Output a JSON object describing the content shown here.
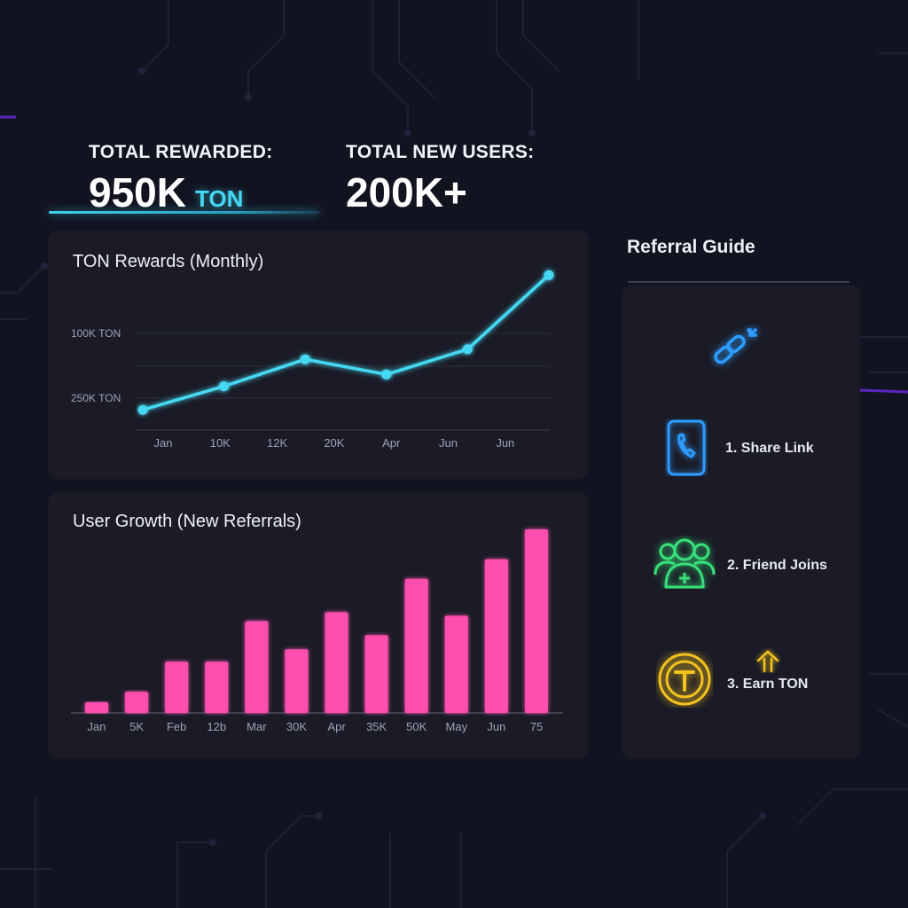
{
  "stats": {
    "rewarded_label": "TOTAL REWARDED:",
    "rewarded_value": "950K",
    "rewarded_unit": "TON",
    "users_label": "TOTAL NEW USERS:",
    "users_value": "200K+"
  },
  "colors": {
    "background": "#121320",
    "panel": "#1a1b26",
    "line": "#45d8f2",
    "bar": "#ff4fae",
    "step1": "#2e9cff",
    "step2": "#37e07a",
    "step3": "#f4c21f"
  },
  "chart_data": [
    {
      "type": "line",
      "title": "TON Rewards (Monthly)",
      "x_tick_labels": [
        "Jan",
        "10K",
        "12K",
        "20K",
        "Apr",
        "Jun",
        "Jun"
      ],
      "y_tick_labels": [
        "100K TON",
        "250K TON"
      ],
      "series": [
        {
          "values": [
            0.12,
            0.26,
            0.42,
            0.33,
            0.48,
            0.92
          ]
        }
      ],
      "ylim": [
        0,
        1
      ],
      "grid": true
    },
    {
      "type": "bar",
      "title": "User Growth (New Referrals)",
      "x_tick_labels": [
        "Jan",
        "5K",
        "Feb",
        "12b",
        "Mar",
        "30K",
        "Apr",
        "35K",
        "50K",
        "May",
        "Jun",
        "75"
      ],
      "values": [
        6,
        12,
        29,
        29,
        52,
        36,
        57,
        44,
        76,
        55,
        87,
        104
      ],
      "ylim": [
        0,
        110
      ],
      "grid": false
    }
  ],
  "guide": {
    "title": "Referral Guide",
    "steps": [
      {
        "label": "1. Share Link",
        "icon": "phone-icon"
      },
      {
        "label": "2. Friend Joins",
        "icon": "friends-add-icon"
      },
      {
        "label": "3. Earn TON",
        "icon": "ton-coin-icon"
      }
    ],
    "top_icon": "link-icon",
    "earn_arrow_icon": "double-up-arrow-icon"
  }
}
